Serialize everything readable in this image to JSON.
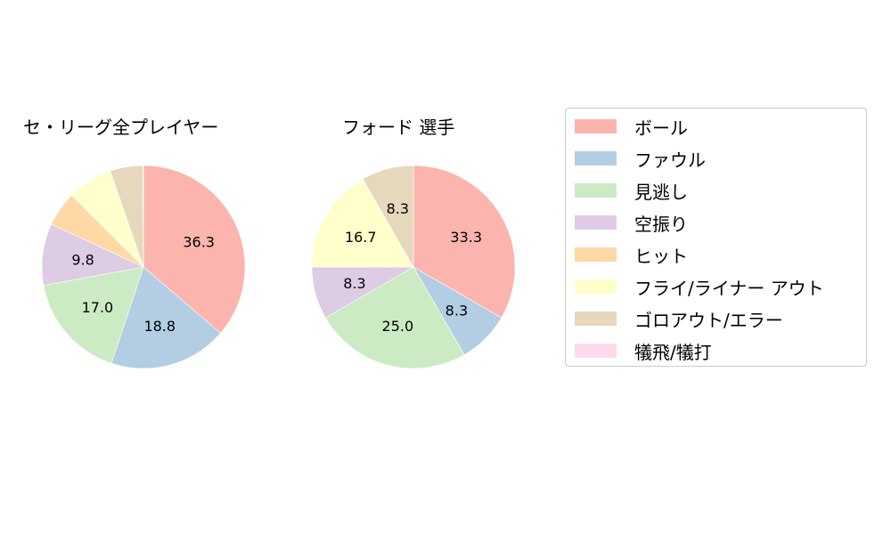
{
  "chart_data": [
    {
      "type": "pie",
      "title": "セ・リーグ全プレイヤー",
      "categories": [
        "ボール",
        "ファウル",
        "見逃し",
        "空振り",
        "ヒット",
        "フライ/ライナー アウト",
        "ゴロアウト/エラー",
        "犠飛/犠打"
      ],
      "values": [
        36.3,
        18.8,
        17.0,
        9.8,
        5.6,
        7.2,
        5.2,
        0.1
      ],
      "labels_shown": [
        "36.3",
        "18.8",
        "17.0",
        "9.8",
        "",
        "",
        "",
        ""
      ],
      "start_angle": 90,
      "direction": "clockwise"
    },
    {
      "type": "pie",
      "title": "フォード  選手",
      "categories": [
        "ボール",
        "ファウル",
        "見逃し",
        "空振り",
        "ヒット",
        "フライ/ライナー アウト",
        "ゴロアウト/エラー",
        "犠飛/犠打"
      ],
      "values": [
        33.3,
        8.3,
        25.0,
        8.3,
        0.0,
        16.7,
        8.3,
        0.0
      ],
      "labels_shown": [
        "33.3",
        "8.3",
        "25.0",
        "8.3",
        "",
        "16.7",
        "8.3",
        ""
      ],
      "start_angle": 90,
      "direction": "clockwise"
    }
  ],
  "legend": {
    "items": [
      {
        "label": "ボール",
        "color": "#fbb4ae"
      },
      {
        "label": "ファウル",
        "color": "#b3cde3"
      },
      {
        "label": "見逃し",
        "color": "#ccebc5"
      },
      {
        "label": "空振り",
        "color": "#decbe4"
      },
      {
        "label": "ヒット",
        "color": "#fed9a6"
      },
      {
        "label": "フライ/ライナー アウト",
        "color": "#ffffcc"
      },
      {
        "label": "ゴロアウト/エラー",
        "color": "#e5d8bd"
      },
      {
        "label": "犠飛/犠打",
        "color": "#fddaec"
      }
    ]
  }
}
